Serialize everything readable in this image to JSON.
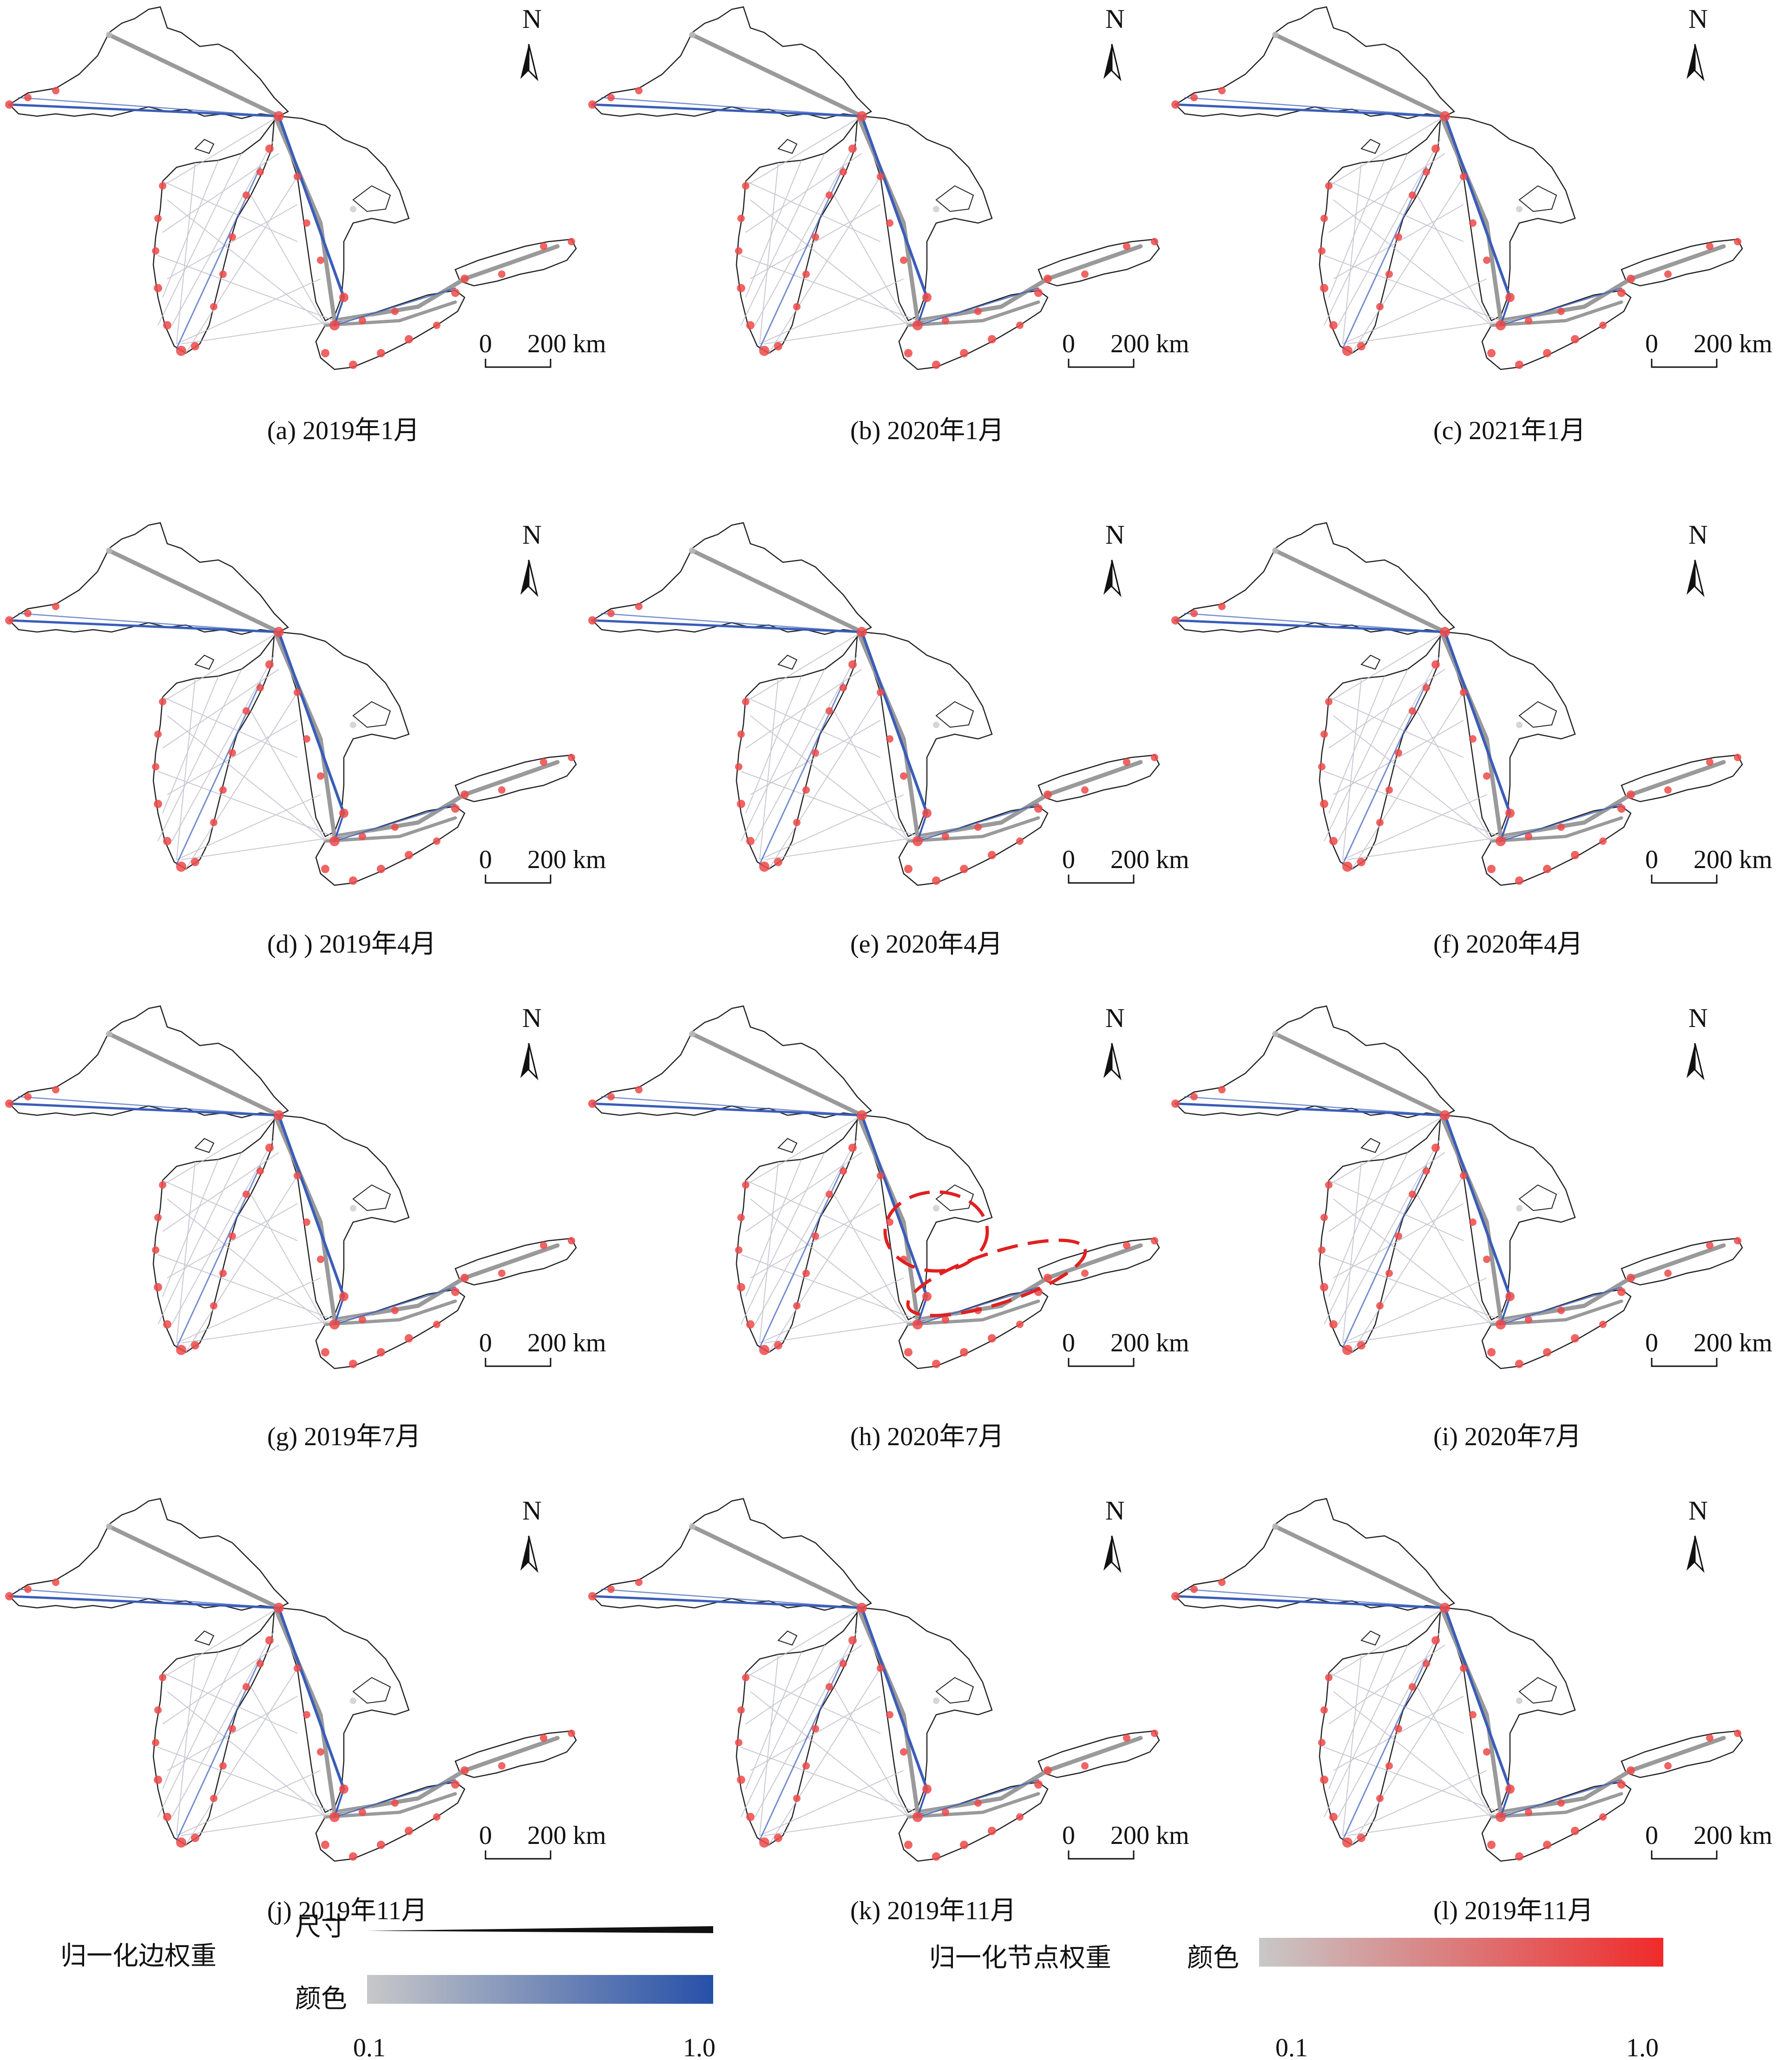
{
  "north_label": "N",
  "scale_bar": {
    "zero": "0",
    "distance": "200 km"
  },
  "panels": [
    {
      "caption": "(a) 2019年1月"
    },
    {
      "caption": "(b) 2020年1月"
    },
    {
      "caption": "(c) 2021年1月"
    },
    {
      "caption": "(d) ) 2019年4月"
    },
    {
      "caption": "(e) 2020年4月"
    },
    {
      "caption": "(f) 2020年4月"
    },
    {
      "caption": "(g) 2019年7月"
    },
    {
      "caption": "(h) 2020年7月"
    },
    {
      "caption": "(i) 2020年7月"
    },
    {
      "caption": "(j) 2019年11月"
    },
    {
      "caption": "(k) 2019年11月"
    },
    {
      "caption": "(l) 2019年11月"
    }
  ],
  "highlight_panel_index": 7,
  "legend": {
    "edge": {
      "title": "归一化边权重",
      "size_label": "尺寸",
      "color_label": "颜色",
      "min_label": "0.1",
      "max_label": "1.0",
      "color_from": "#c8c8c8",
      "color_to": "#2650a8"
    },
    "node": {
      "title": "归一化节点权重",
      "color_label": "颜色",
      "min_label": "0.1",
      "max_label": "1.0",
      "color_from": "#c8c8c8",
      "color_to": "#f02a2a"
    }
  },
  "colors": {
    "coastline": "#222222",
    "edge_gray": "#b8b8c4",
    "edge_blue": "#3a5db8",
    "node_red": "#ee4a4a",
    "highlight": "#e02020"
  }
}
